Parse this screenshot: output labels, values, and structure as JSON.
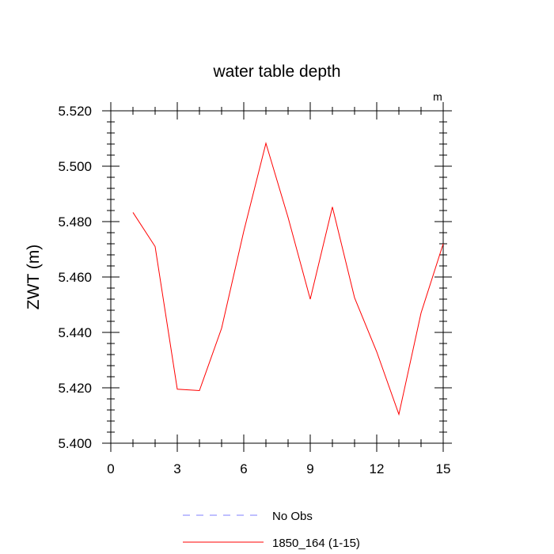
{
  "chart_data": {
    "type": "line",
    "title": "water table depth",
    "units_label": "m",
    "ylabel": "ZWT  (m)",
    "xlabel": "",
    "xlim": [
      0,
      15
    ],
    "ylim": [
      5.4,
      5.52
    ],
    "x_ticks": [
      0,
      3,
      6,
      9,
      12,
      15
    ],
    "x_tick_labels": [
      "0",
      "3",
      "6",
      "9",
      "12",
      "15"
    ],
    "y_ticks": [
      5.4,
      5.42,
      5.44,
      5.46,
      5.48,
      5.5,
      5.52
    ],
    "y_tick_labels": [
      "5.400",
      "5.420",
      "5.440",
      "5.460",
      "5.480",
      "5.500",
      "5.520"
    ],
    "grid": false,
    "legend_position": "bottom",
    "series": [
      {
        "name": "No Obs",
        "color": "#7f7fff",
        "dash": "dashed",
        "x": [],
        "y": []
      },
      {
        "name": "1850_164 (1-15)",
        "color": "#ff0000",
        "dash": "solid",
        "x": [
          1,
          2,
          3,
          4,
          5,
          6,
          7,
          8,
          9,
          10,
          11,
          12,
          13,
          14,
          15
        ],
        "y": [
          5.4833,
          5.471,
          5.4195,
          5.419,
          5.4415,
          5.4765,
          5.5083,
          5.4815,
          5.452,
          5.4853,
          5.4525,
          5.433,
          5.4104,
          5.447,
          5.472
        ]
      }
    ]
  }
}
